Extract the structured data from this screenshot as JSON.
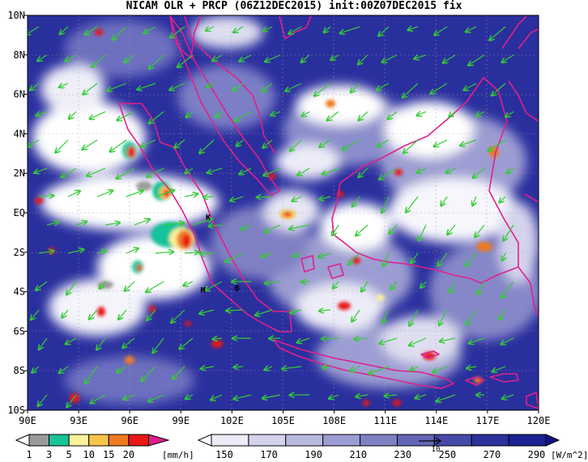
{
  "title": "NICAM OLR + PRCP (06Z12DEC2015) init:00Z07DEC2015 fix",
  "map": {
    "lon_labels": [
      "90E",
      "93E",
      "96E",
      "99E",
      "102E",
      "105E",
      "108E",
      "111E",
      "114E",
      "117E",
      "120E"
    ],
    "lat_labels": [
      "10N",
      "8N",
      "6N",
      "4N",
      "2N",
      "EQ",
      "2S",
      "4S",
      "6S",
      "8S",
      "10S"
    ],
    "lon_range": [
      90,
      120
    ],
    "lat_range": [
      -10,
      10
    ],
    "ocean_color": "#2a2f9e",
    "coast_color": "#e0208a",
    "wind_color": "#33cc33",
    "grid": "dotted",
    "markers": [
      {
        "label": "K",
        "lon": 100.6,
        "lat": -0.2
      },
      {
        "label": "M",
        "lon": 100.3,
        "lat": -3.9
      },
      {
        "label": "B",
        "lon": 102.3,
        "lat": -3.8
      }
    ]
  },
  "precip_bar": {
    "ticks": [
      "1",
      "3",
      "5",
      "10",
      "15",
      "20"
    ],
    "unit": "[mm/h]",
    "colors": [
      "#9a9a9a",
      "#18c39a",
      "#fbf19a",
      "#f7c44a",
      "#ef7a20",
      "#e81818",
      "#dd1c8a"
    ]
  },
  "olr_bar": {
    "ticks": [
      "150",
      "170",
      "190",
      "210",
      "230",
      "250",
      "270",
      "290"
    ],
    "unit": "[W/m^2]",
    "ref_label": "10",
    "colors": [
      "#ffffff",
      "#ecebf6",
      "#d4d3ec",
      "#b9b9e0",
      "#9c9dd2",
      "#7f80c3",
      "#6365b6",
      "#4749a9",
      "#2d309b",
      "#1c2294",
      "#0f1386"
    ]
  }
}
